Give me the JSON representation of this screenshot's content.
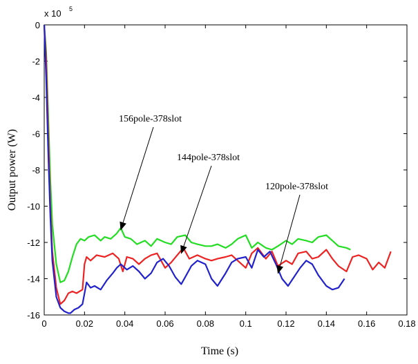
{
  "chart_data": {
    "type": "line",
    "xlabel": "Time (s)",
    "ylabel": "Output power (W)",
    "y_exponent_label": "x 10",
    "y_exponent_power": "5",
    "xlim": [
      0,
      0.18
    ],
    "ylim": [
      -16,
      0
    ],
    "x_ticks": [
      "0",
      "0.02",
      "0.04",
      "0.06",
      "0.08",
      "0.1",
      "0.12",
      "0.14",
      "0.16",
      "0.18"
    ],
    "y_ticks": [
      "0",
      "-2",
      "-4",
      "-6",
      "-8",
      "-10",
      "-12",
      "-14",
      "-16"
    ],
    "grid": false,
    "series": [
      {
        "name": "156pole-378slot",
        "color": "#22dd22",
        "x": [
          0,
          0.001,
          0.002,
          0.003,
          0.004,
          0.006,
          0.008,
          0.01,
          0.012,
          0.014,
          0.016,
          0.018,
          0.02,
          0.022,
          0.025,
          0.028,
          0.03,
          0.033,
          0.036,
          0.038,
          0.04,
          0.043,
          0.046,
          0.05,
          0.053,
          0.056,
          0.06,
          0.063,
          0.066,
          0.07,
          0.073,
          0.076,
          0.08,
          0.083,
          0.086,
          0.09,
          0.093,
          0.096,
          0.1,
          0.103,
          0.106,
          0.11,
          0.113,
          0.116,
          0.12,
          0.123,
          0.126,
          0.13,
          0.133,
          0.136,
          0.14,
          0.143,
          0.146,
          0.15,
          0.152
        ],
        "y": [
          0,
          -1.5,
          -5,
          -8.5,
          -11,
          -13.2,
          -14.2,
          -14.1,
          -13.6,
          -12.8,
          -12.1,
          -11.8,
          -11.9,
          -11.7,
          -11.6,
          -11.9,
          -11.7,
          -11.8,
          -11.5,
          -11.2,
          -11.7,
          -11.8,
          -12.1,
          -11.9,
          -12.2,
          -11.8,
          -12.0,
          -12.1,
          -11.7,
          -11.6,
          -12.0,
          -12.1,
          -12.2,
          -12.2,
          -12.1,
          -12.3,
          -12.1,
          -11.8,
          -11.6,
          -12.3,
          -12.0,
          -12.3,
          -12.4,
          -12.2,
          -11.9,
          -12.1,
          -11.8,
          -11.9,
          -12.0,
          -11.7,
          -11.6,
          -11.9,
          -12.2,
          -12.3,
          -12.4
        ]
      },
      {
        "name": "144pole-378slot",
        "color": "#ee2222",
        "x": [
          0,
          0.001,
          0.002,
          0.003,
          0.004,
          0.006,
          0.008,
          0.01,
          0.012,
          0.014,
          0.016,
          0.019,
          0.02,
          0.021,
          0.023,
          0.026,
          0.03,
          0.034,
          0.037,
          0.039,
          0.041,
          0.044,
          0.047,
          0.05,
          0.053,
          0.056,
          0.06,
          0.063,
          0.066,
          0.069,
          0.072,
          0.076,
          0.08,
          0.083,
          0.086,
          0.09,
          0.093,
          0.096,
          0.1,
          0.103,
          0.106,
          0.11,
          0.113,
          0.116,
          0.12,
          0.123,
          0.126,
          0.13,
          0.133,
          0.136,
          0.14,
          0.143,
          0.146,
          0.15,
          0.153,
          0.156,
          0.16,
          0.163,
          0.166,
          0.169,
          0.172
        ],
        "y": [
          0,
          -2,
          -6,
          -10,
          -12.5,
          -14.5,
          -15.4,
          -15.2,
          -14.8,
          -14.7,
          -14.8,
          -14.6,
          -13.2,
          -12.8,
          -13.0,
          -12.7,
          -12.8,
          -12.6,
          -12.9,
          -13.6,
          -12.8,
          -12.9,
          -13.2,
          -12.9,
          -12.7,
          -12.6,
          -13.4,
          -13.1,
          -12.7,
          -12.3,
          -12.9,
          -12.7,
          -12.9,
          -13.0,
          -12.9,
          -12.8,
          -12.7,
          -13.0,
          -13.4,
          -12.6,
          -12.3,
          -12.9,
          -12.5,
          -13.3,
          -13.0,
          -13.2,
          -12.6,
          -12.5,
          -12.9,
          -12.8,
          -12.4,
          -12.9,
          -13.3,
          -13.6,
          -12.8,
          -12.7,
          -12.9,
          -13.5,
          -13.1,
          -13.4,
          -12.5
        ]
      },
      {
        "name": "120pole-378slot",
        "color": "#2222cc",
        "x": [
          0,
          0.001,
          0.002,
          0.003,
          0.004,
          0.006,
          0.008,
          0.01,
          0.012,
          0.013,
          0.015,
          0.017,
          0.019,
          0.021,
          0.023,
          0.025,
          0.028,
          0.031,
          0.034,
          0.036,
          0.038,
          0.041,
          0.044,
          0.047,
          0.05,
          0.053,
          0.056,
          0.059,
          0.062,
          0.065,
          0.068,
          0.07,
          0.073,
          0.076,
          0.08,
          0.083,
          0.086,
          0.09,
          0.093,
          0.096,
          0.1,
          0.103,
          0.106,
          0.109,
          0.112,
          0.115,
          0.118,
          0.121,
          0.124,
          0.127,
          0.13,
          0.133,
          0.136,
          0.14,
          0.143,
          0.146,
          0.149
        ],
        "y": [
          0,
          -3,
          -7,
          -10.5,
          -13,
          -15,
          -15.6,
          -15.8,
          -15.9,
          -15.9,
          -15.7,
          -15.6,
          -15.4,
          -14.2,
          -14.5,
          -14.4,
          -14.6,
          -14.1,
          -13.7,
          -13.4,
          -13.2,
          -13.5,
          -13.3,
          -13.6,
          -14.0,
          -13.7,
          -13.1,
          -12.9,
          -13.3,
          -13.9,
          -14.3,
          -13.9,
          -13.3,
          -13.0,
          -13.2,
          -14.0,
          -14.4,
          -13.7,
          -13.1,
          -12.9,
          -12.8,
          -13.4,
          -12.4,
          -12.8,
          -12.5,
          -13.2,
          -14.0,
          -14.4,
          -13.9,
          -13.4,
          -13.0,
          -13.2,
          -13.8,
          -14.4,
          -14.6,
          -14.5,
          -14.0
        ]
      }
    ],
    "annotations": [
      {
        "text": "156pole-378slot",
        "target_x": 0.038,
        "target_y": -11.3
      },
      {
        "text": "144pole-378slot",
        "target_x": 0.068,
        "target_y": -12.6
      },
      {
        "text": "120pole-378slot",
        "target_x": 0.116,
        "target_y": -13.7
      }
    ]
  }
}
